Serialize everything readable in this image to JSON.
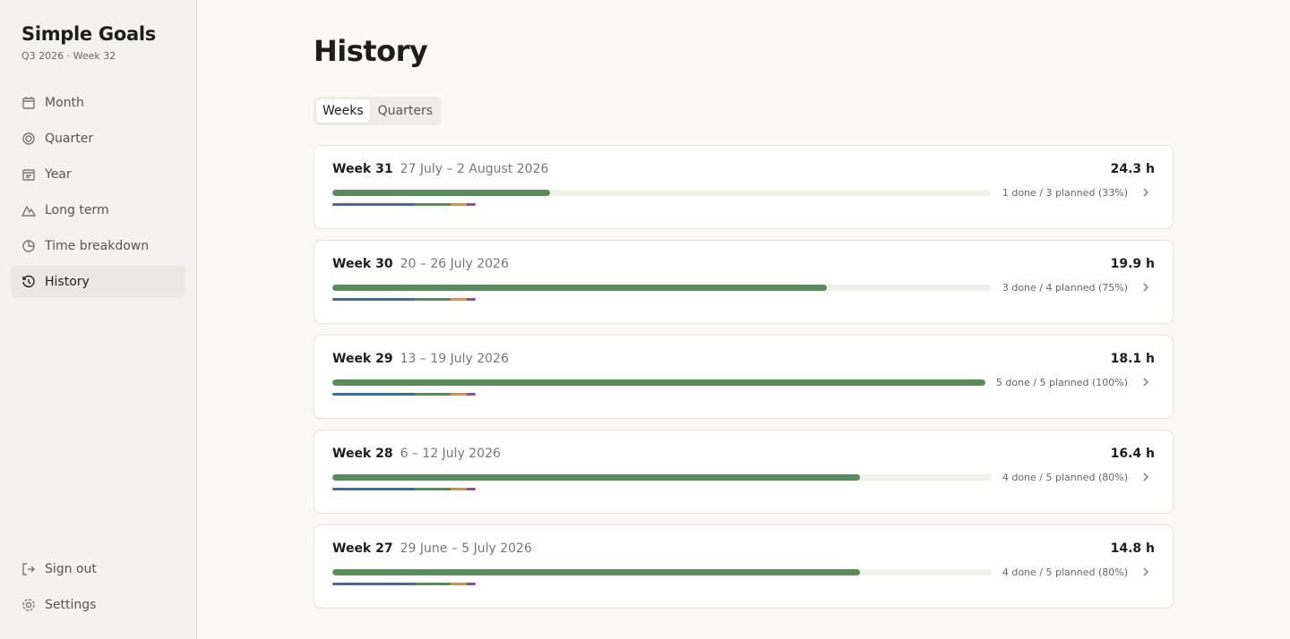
{
  "sidebar": {
    "app_title": "Simple Goals",
    "subtitle": "Q3 2026 · Week 32",
    "nav": [
      "Month",
      "Quarter",
      "Year",
      "Long term",
      "Time breakdown",
      "History"
    ],
    "footer": [
      "Sign out",
      "Settings"
    ]
  },
  "main": {
    "title": "History",
    "tabs": [
      "Weeks",
      "Quarters"
    ],
    "weeks": [
      {
        "week": "Week 31",
        "range": "27 July – 2 August 2026",
        "hours": "24.3 h",
        "progress": "1 done / 3 planned (33%)",
        "percent": 33
      },
      {
        "week": "Week 30",
        "range": "20 – 26 July 2026",
        "hours": "19.9 h",
        "progress": "3 done / 4 planned (75%)",
        "percent": 75
      },
      {
        "week": "Week 29",
        "range": "13 – 19 July 2026",
        "hours": "18.1 h",
        "progress": "5 done / 5 planned (100%)",
        "percent": 100
      },
      {
        "week": "Week 28",
        "range": "6 – 12 July 2026",
        "hours": "16.4 h",
        "progress": "4 done / 5 planned (80%)",
        "percent": 80
      },
      {
        "week": "Week 27",
        "range": "29 June – 5 July 2026",
        "hours": "14.8 h",
        "progress": "4 done / 5 planned (80%)",
        "percent": 80
      }
    ]
  }
}
